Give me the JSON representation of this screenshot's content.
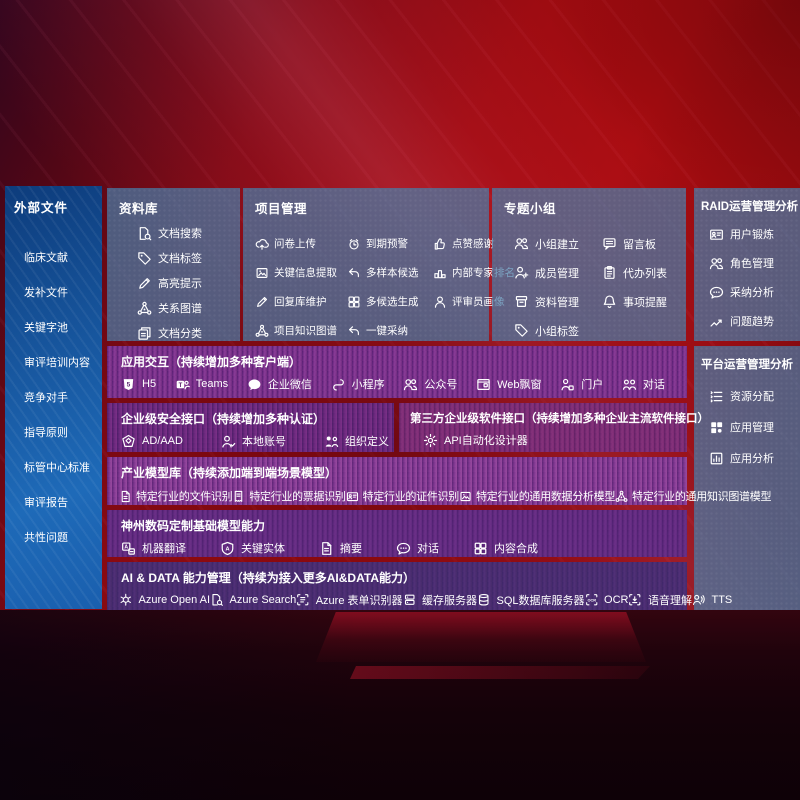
{
  "colors": {
    "background_red": "#a40b10",
    "sidebar_blue": "#1a5fae",
    "box_slate": "rgba(70,125,168,0.72)",
    "purple_primary": "#7b3289",
    "purple_deep": "#452a69"
  },
  "left_panel": {
    "title": "外部文件",
    "items": [
      {
        "label": "临床文献"
      },
      {
        "label": "发补文件"
      },
      {
        "label": "关键字池"
      },
      {
        "label": "审评培训内容"
      },
      {
        "label": "竞争对手"
      },
      {
        "label": "指导原则"
      },
      {
        "label": "标管中心标准"
      },
      {
        "label": "审评报告"
      },
      {
        "label": "共性问题"
      }
    ]
  },
  "library": {
    "title": "资料库",
    "items": [
      {
        "icon": "document-search-icon",
        "glyph": "doc-search",
        "label": "文档搜索"
      },
      {
        "icon": "tag-icon",
        "glyph": "tag",
        "label": "文档标签"
      },
      {
        "icon": "highlighter-icon",
        "glyph": "pen",
        "label": "高亮提示"
      },
      {
        "icon": "relation-graph-icon",
        "glyph": "network",
        "label": "关系图谱"
      },
      {
        "icon": "document-category-icon",
        "glyph": "docs",
        "label": "文档分类"
      }
    ]
  },
  "project": {
    "title": "项目管理",
    "items": [
      {
        "icon": "cloud-upload-icon",
        "glyph": "cloud-up",
        "label": "问卷上传"
      },
      {
        "icon": "key-info-extract-icon",
        "glyph": "image-doc",
        "label": "关键信息提取"
      },
      {
        "icon": "reply-library-icon",
        "glyph": "pen",
        "label": "回复库维护"
      },
      {
        "icon": "knowledge-graph-icon",
        "glyph": "network",
        "label": "项目知识图谱"
      },
      {
        "icon": "alarm-icon",
        "glyph": "alarm",
        "label": "到期预警"
      },
      {
        "icon": "multi-sample-icon",
        "glyph": "arrow-curve",
        "label": "多样本候选"
      },
      {
        "icon": "multi-generate-icon",
        "glyph": "grid4",
        "label": "多候选生成"
      },
      {
        "icon": "one-click-adopt-icon",
        "glyph": "arrow-curve",
        "label": "一键采纳"
      },
      {
        "icon": "thumbs-up-icon",
        "glyph": "thumb",
        "label": "点赞感谢"
      },
      {
        "icon": "expert-ranking-icon",
        "glyph": "rank",
        "label": "内部专家排名"
      },
      {
        "icon": "reviewer-profile-icon",
        "glyph": "person",
        "label": "评审员画像"
      }
    ]
  },
  "topic_group": {
    "title": "专题小组",
    "items": [
      {
        "icon": "group-create-icon",
        "glyph": "people",
        "label": "小组建立"
      },
      {
        "icon": "member-manage-icon",
        "glyph": "person-plus",
        "label": "成员管理"
      },
      {
        "icon": "material-manage-icon",
        "glyph": "archive",
        "label": "资料管理"
      },
      {
        "icon": "group-tag-icon",
        "glyph": "tag",
        "label": "小组标签"
      },
      {
        "icon": "message-board-icon",
        "glyph": "bbs",
        "label": "留言板"
      },
      {
        "icon": "todo-list-icon",
        "glyph": "clipboard",
        "label": "代办列表"
      },
      {
        "icon": "reminder-bell-icon",
        "glyph": "bell",
        "label": "事项提醒"
      }
    ]
  },
  "raid": {
    "title": "RAID运营管理分析",
    "items": [
      {
        "icon": "user-card-icon",
        "glyph": "idcard",
        "label": "用户锻炼"
      },
      {
        "icon": "role-manage-icon",
        "glyph": "people",
        "label": "角色管理"
      },
      {
        "icon": "adoption-analysis-icon",
        "glyph": "chat-dots",
        "label": "采纳分析"
      },
      {
        "icon": "issue-trend-icon",
        "glyph": "trend",
        "label": "问题趋势"
      }
    ]
  },
  "platform": {
    "title": "平台运营管理分析",
    "items": [
      {
        "icon": "resource-allocation-icon",
        "glyph": "list",
        "label": "资源分配"
      },
      {
        "icon": "app-manage-icon",
        "glyph": "grid-apps",
        "label": "应用管理"
      },
      {
        "icon": "app-analysis-icon",
        "glyph": "chart-box",
        "label": "应用分析"
      }
    ]
  },
  "interaction": {
    "title": "应用交互（持续增加多种客户端）",
    "items": [
      {
        "icon": "h5-icon",
        "glyph": "h5",
        "label": "H5"
      },
      {
        "icon": "teams-icon",
        "glyph": "teams",
        "label": "Teams"
      },
      {
        "icon": "wecom-icon",
        "glyph": "bubble",
        "label": "企业微信"
      },
      {
        "icon": "miniprogram-icon",
        "glyph": "mini",
        "label": "小程序"
      },
      {
        "icon": "official-account-icon",
        "glyph": "people",
        "label": "公众号"
      },
      {
        "icon": "web-window-icon",
        "glyph": "window",
        "label": "Web飘窗"
      },
      {
        "icon": "portal-icon",
        "glyph": "portal",
        "label": "门户"
      },
      {
        "icon": "dialog-icon",
        "glyph": "people-chat",
        "label": "对话"
      }
    ]
  },
  "security": {
    "title": "企业级安全接口（持续增加多种认证）",
    "items": [
      {
        "icon": "ad-aad-icon",
        "glyph": "shield-ad",
        "label": "AD/AAD"
      },
      {
        "icon": "local-account-icon",
        "glyph": "person-check",
        "label": "本地账号"
      },
      {
        "icon": "org-definition-icon",
        "glyph": "org",
        "label": "组织定义"
      }
    ]
  },
  "third_party": {
    "title": "第三方企业级软件接口（持续增加多种企业主流软件接口）",
    "items": [
      {
        "icon": "api-designer-icon",
        "glyph": "gear",
        "label": "API自动化设计器"
      }
    ]
  },
  "industry_models": {
    "title": "产业模型库（持续添加端到端场景模型）",
    "items": [
      {
        "icon": "file-recognition-icon",
        "glyph": "doc",
        "label": "特定行业的文件识别"
      },
      {
        "icon": "receipt-recognition-icon",
        "glyph": "receipt",
        "label": "特定行业的票据识别"
      },
      {
        "icon": "id-recognition-icon",
        "glyph": "idcard",
        "label": "特定行业的证件识别"
      },
      {
        "icon": "data-analysis-model-icon",
        "glyph": "image-doc",
        "label": "特定行业的通用数据分析模型"
      },
      {
        "icon": "knowledge-graph-model-icon",
        "glyph": "network",
        "label": "特定行业的通用知识图谱模型"
      }
    ]
  },
  "base_models": {
    "title": "神州数码定制基础模型能力",
    "items": [
      {
        "icon": "machine-translate-icon",
        "glyph": "translate",
        "label": "机器翻译"
      },
      {
        "icon": "key-entity-icon",
        "glyph": "shield-a",
        "label": "关键实体"
      },
      {
        "icon": "summary-icon",
        "glyph": "doc",
        "label": "摘要"
      },
      {
        "icon": "chat-icon",
        "glyph": "chat-dots",
        "label": "对话"
      },
      {
        "icon": "content-compose-icon",
        "glyph": "grid4",
        "label": "内容合成"
      }
    ]
  },
  "ai_data": {
    "title": "AI & DATA 能力管理（持续为接入更多AI&DATA能力）",
    "items": [
      {
        "icon": "openai-icon",
        "glyph": "openai",
        "label": "Azure Open AI"
      },
      {
        "icon": "azure-search-icon",
        "glyph": "doc-search",
        "label": "Azure Search"
      },
      {
        "icon": "form-recognizer-icon",
        "glyph": "brackets-doc",
        "label": "Azure 表单识别器"
      },
      {
        "icon": "cache-server-icon",
        "glyph": "server",
        "label": "缓存服务器"
      },
      {
        "icon": "sql-db-icon",
        "glyph": "db",
        "label": "SQL数据库服务器"
      },
      {
        "icon": "ocr-icon",
        "glyph": "ocr",
        "label": "OCR"
      },
      {
        "icon": "speech-understanding-icon",
        "glyph": "voice",
        "label": "语音理解"
      },
      {
        "icon": "tts-icon",
        "glyph": "tts",
        "label": "TTS"
      }
    ]
  }
}
